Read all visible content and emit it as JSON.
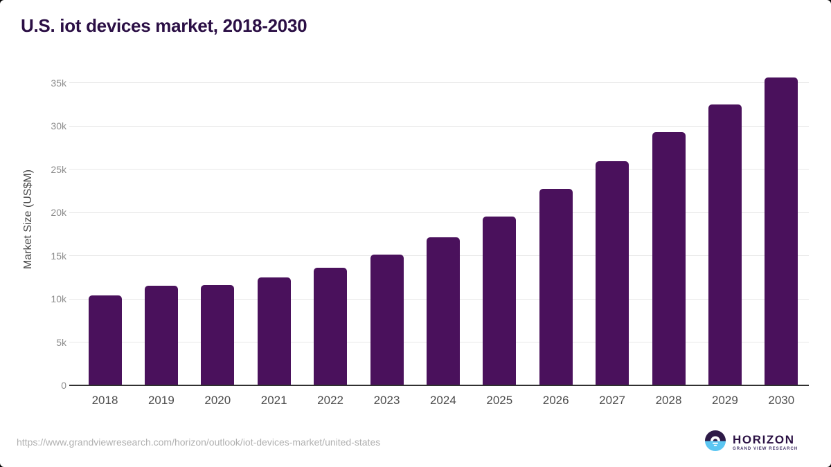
{
  "page": {
    "title": "U.S. iot devices market, 2018-2030"
  },
  "chart_data": {
    "type": "bar",
    "title": "U.S. iot devices market, 2018-2030",
    "xlabel": "",
    "ylabel": "Market Size (US$M)",
    "categories": [
      "2018",
      "2019",
      "2020",
      "2021",
      "2022",
      "2023",
      "2024",
      "2025",
      "2026",
      "2027",
      "2028",
      "2029",
      "2030"
    ],
    "values": [
      10400,
      11500,
      11600,
      12500,
      13600,
      15100,
      17100,
      19500,
      22700,
      25900,
      29300,
      32500,
      35600
    ],
    "unit": "US$M",
    "ylim": [
      0,
      36000
    ],
    "ytick_interval": 5000,
    "ytick_labels": [
      "0",
      "5k",
      "10k",
      "15k",
      "20k",
      "25k",
      "30k",
      "35k"
    ],
    "grid": true,
    "legend": "none"
  },
  "footer": {
    "source_url": "https://www.grandviewresearch.com/horizon/outlook/iot-devices-market/united-states",
    "logo": {
      "brand": "HORIZON",
      "sub_brand": "GRAND VIEW RESEARCH"
    }
  },
  "colors": {
    "bar": "#4a115c",
    "title_text": "#2b0f45",
    "axis_line": "#303030",
    "gridline": "#e7e7e7",
    "ytick_text": "#8c8c8c",
    "xtick_text": "#4d4d4d",
    "yaxis_title_text": "#464646",
    "source_text": "#b0b0b0",
    "logo_purple": "#2e1a47",
    "logo_blue": "#5bc6f2"
  }
}
